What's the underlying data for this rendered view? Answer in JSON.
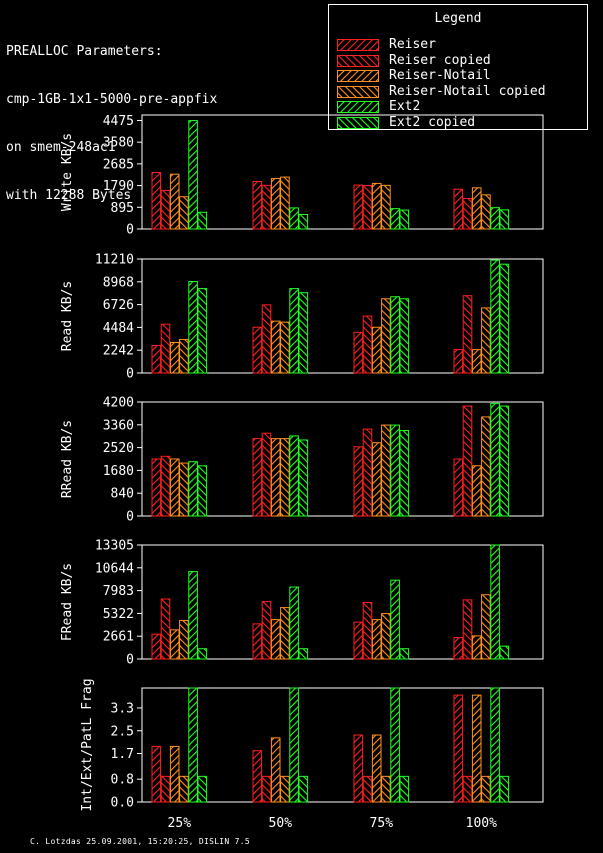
{
  "header": {
    "lines": [
      "PREALLOC Parameters:",
      "cmp-1GB-1x1-5000-pre-appfix",
      "on smem-248ac1",
      "with 12288 Bytes"
    ]
  },
  "legend": {
    "title": "Legend",
    "items": [
      {
        "label": "Reiser",
        "color": "#ff2020",
        "solid": true
      },
      {
        "label": "Reiser copied",
        "color": "#ff2020",
        "solid": false
      },
      {
        "label": "Reiser-Notail",
        "color": "#ff9020",
        "solid": true
      },
      {
        "label": "Reiser-Notail copied",
        "color": "#ff9020",
        "solid": false
      },
      {
        "label": "Ext2",
        "color": "#20ff20",
        "solid": true
      },
      {
        "label": "Ext2 copied",
        "color": "#20ff20",
        "solid": false
      }
    ]
  },
  "footer": "C. Lotzdas 25.09.2001, 15:20:25, DISLIN 7.5",
  "chart_data": [
    {
      "type": "bar",
      "ylabel": "Write KB/s",
      "categories": [
        "25%",
        "50%",
        "75%",
        "100%"
      ],
      "yticks": [
        0,
        895,
        1790,
        2685,
        3580,
        4475
      ],
      "ylim": [
        0,
        4700
      ],
      "series": [
        {
          "name": "Reiser",
          "values": [
            2330,
            1960,
            1810,
            1640
          ]
        },
        {
          "name": "Reiser copied",
          "values": [
            1590,
            1800,
            1790,
            1260
          ]
        },
        {
          "name": "Reiser-Notail",
          "values": [
            2260,
            2080,
            1880,
            1700
          ]
        },
        {
          "name": "Reiser-Notail copied",
          "values": [
            1330,
            2140,
            1800,
            1410
          ]
        },
        {
          "name": "Ext2",
          "values": [
            4470,
            870,
            840,
            880
          ]
        },
        {
          "name": "Ext2 copied",
          "values": [
            690,
            600,
            780,
            790
          ]
        }
      ]
    },
    {
      "type": "bar",
      "ylabel": "Read KB/s",
      "categories": [
        "25%",
        "50%",
        "75%",
        "100%"
      ],
      "yticks": [
        0,
        2242,
        4484,
        6726,
        8968,
        11210
      ],
      "ylim": [
        0,
        11210
      ],
      "series": [
        {
          "name": "Reiser",
          "values": [
            2700,
            4500,
            4000,
            2300
          ]
        },
        {
          "name": "Reiser copied",
          "values": [
            4800,
            6700,
            5600,
            7600
          ]
        },
        {
          "name": "Reiser-Notail",
          "values": [
            3000,
            5100,
            4500,
            2300
          ]
        },
        {
          "name": "Reiser-Notail copied",
          "values": [
            3300,
            5000,
            7300,
            6400
          ]
        },
        {
          "name": "Ext2",
          "values": [
            9000,
            8300,
            7500,
            11100
          ]
        },
        {
          "name": "Ext2 copied",
          "values": [
            8300,
            7900,
            7300,
            10700
          ]
        }
      ]
    },
    {
      "type": "bar",
      "ylabel": "RRead KB/s",
      "categories": [
        "25%",
        "50%",
        "75%",
        "100%"
      ],
      "yticks": [
        0,
        840,
        1680,
        2520,
        3360,
        4200
      ],
      "ylim": [
        0,
        4200
      ],
      "series": [
        {
          "name": "Reiser",
          "values": [
            2100,
            2850,
            2550,
            2100
          ]
        },
        {
          "name": "Reiser copied",
          "values": [
            2200,
            3050,
            3200,
            4050
          ]
        },
        {
          "name": "Reiser-Notail",
          "values": [
            2100,
            2850,
            2700,
            1850
          ]
        },
        {
          "name": "Reiser-Notail copied",
          "values": [
            1950,
            2850,
            3350,
            3650
          ]
        },
        {
          "name": "Ext2",
          "values": [
            2000,
            2950,
            3350,
            4150
          ]
        },
        {
          "name": "Ext2 copied",
          "values": [
            1850,
            2800,
            3150,
            4050
          ]
        }
      ]
    },
    {
      "type": "bar",
      "ylabel": "FRead KB/s",
      "categories": [
        "25%",
        "50%",
        "75%",
        "100%"
      ],
      "yticks": [
        0,
        2661,
        5322,
        7983,
        10644,
        13305
      ],
      "ylim": [
        0,
        13305
      ],
      "series": [
        {
          "name": "Reiser",
          "values": [
            2900,
            4100,
            4300,
            2500
          ]
        },
        {
          "name": "Reiser copied",
          "values": [
            7000,
            6700,
            6600,
            6900
          ]
        },
        {
          "name": "Reiser-Notail",
          "values": [
            3400,
            4600,
            4600,
            2700
          ]
        },
        {
          "name": "Reiser-Notail copied",
          "values": [
            4500,
            6000,
            5300,
            7500
          ]
        },
        {
          "name": "Ext2",
          "values": [
            10200,
            8400,
            9200,
            13300
          ]
        },
        {
          "name": "Ext2 copied",
          "values": [
            1200,
            1200,
            1200,
            1500
          ]
        }
      ]
    },
    {
      "type": "bar",
      "ylabel": "Int/Ext/PatL Frag",
      "categories": [
        "25%",
        "50%",
        "75%",
        "100%"
      ],
      "yticks": [
        0.0,
        0.8,
        1.7,
        2.5,
        3.3
      ],
      "ylim": [
        0,
        4.0
      ],
      "series": [
        {
          "name": "Reiser",
          "values": [
            1.95,
            1.8,
            2.35,
            3.75
          ]
        },
        {
          "name": "Reiser copied",
          "values": [
            0.9,
            0.9,
            0.9,
            0.9
          ]
        },
        {
          "name": "Reiser-Notail",
          "values": [
            1.95,
            2.25,
            2.35,
            3.75
          ]
        },
        {
          "name": "Reiser-Notail copied",
          "values": [
            0.9,
            0.9,
            0.9,
            0.9
          ]
        },
        {
          "name": "Ext2",
          "values": [
            4.0,
            4.0,
            4.0,
            4.0
          ]
        },
        {
          "name": "Ext2 copied",
          "values": [
            0.9,
            0.9,
            0.9,
            0.9
          ]
        }
      ]
    }
  ]
}
